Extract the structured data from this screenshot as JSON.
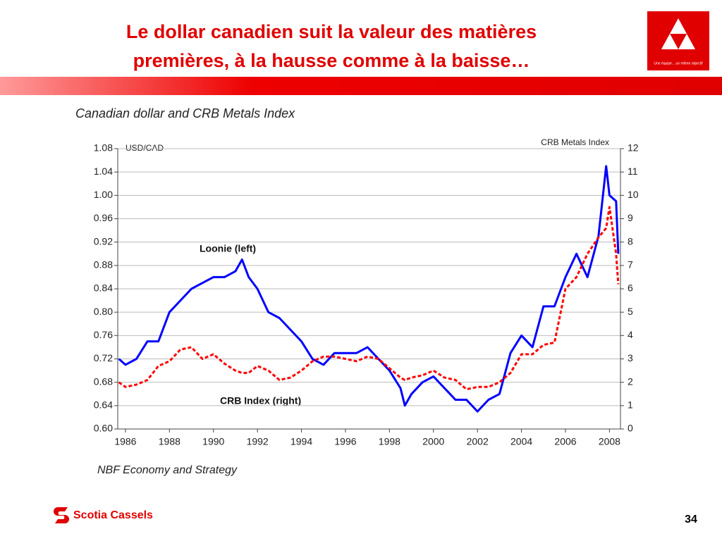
{
  "slide": {
    "title_line1": "Le dollar canadien suit la valeur des matières",
    "title_line2": "premières, à la hausse comme à la baisse…",
    "logo_tagline": "Une équipe... un même objectif",
    "footer_brand": "Scotia Cassels",
    "page_number": "34"
  },
  "chart_data": {
    "type": "line",
    "title": "Canadian dollar and CRB Metals Index",
    "y_axis_label": "USD/CAD",
    "y2_axis_label": "CRB Metals Index",
    "source": "NBF Economy and Strategy",
    "x": [
      1985.7,
      1986.0,
      1986.5,
      1987.0,
      1987.5,
      1988.0,
      1988.5,
      1989.0,
      1989.5,
      1990.0,
      1990.5,
      1991.0,
      1991.3,
      1991.6,
      1992.0,
      1992.5,
      1993.0,
      1993.5,
      1994.0,
      1994.5,
      1995.0,
      1995.5,
      1996.0,
      1996.5,
      1997.0,
      1997.5,
      1998.0,
      1998.5,
      1998.7,
      1999.0,
      1999.5,
      2000.0,
      2000.5,
      2001.0,
      2001.5,
      2002.0,
      2002.5,
      2003.0,
      2003.5,
      2004.0,
      2004.5,
      2005.0,
      2005.5,
      2006.0,
      2006.5,
      2007.0,
      2007.5,
      2007.85,
      2008.0,
      2008.3,
      2008.4
    ],
    "series": [
      {
        "name": "Loonie (left)",
        "color": "#0000ff",
        "axis": "y",
        "values": [
          0.72,
          0.71,
          0.72,
          0.75,
          0.75,
          0.8,
          0.82,
          0.84,
          0.85,
          0.86,
          0.86,
          0.87,
          0.89,
          0.86,
          0.84,
          0.8,
          0.79,
          0.77,
          0.75,
          0.72,
          0.71,
          0.73,
          0.73,
          0.73,
          0.74,
          0.72,
          0.7,
          0.67,
          0.64,
          0.66,
          0.68,
          0.69,
          0.67,
          0.65,
          0.65,
          0.63,
          0.65,
          0.66,
          0.73,
          0.76,
          0.74,
          0.81,
          0.81,
          0.86,
          0.9,
          0.86,
          0.93,
          1.05,
          1.0,
          0.99,
          0.9
        ]
      },
      {
        "name": "CRB Index (right)",
        "color": "#ff0000",
        "axis": "y2",
        "dashed": true,
        "values": [
          2.0,
          1.8,
          1.9,
          2.1,
          2.7,
          2.9,
          3.4,
          3.5,
          3.0,
          3.2,
          2.8,
          2.5,
          2.4,
          2.4,
          2.7,
          2.5,
          2.1,
          2.2,
          2.5,
          2.9,
          3.1,
          3.1,
          3.0,
          2.9,
          3.1,
          3.0,
          2.6,
          2.2,
          2.1,
          2.2,
          2.3,
          2.5,
          2.2,
          2.1,
          1.7,
          1.8,
          1.8,
          2.0,
          2.4,
          3.2,
          3.2,
          3.6,
          3.7,
          6.0,
          6.5,
          7.5,
          8.2,
          8.6,
          9.5,
          7.5,
          6.2
        ]
      }
    ],
    "xlim": [
      1985.65,
      2008.5
    ],
    "xticks": [
      1986,
      1988,
      1990,
      1992,
      1994,
      1996,
      1998,
      2000,
      2002,
      2004,
      2006,
      2008
    ],
    "ylim": [
      0.6,
      1.08
    ],
    "yticks": [
      {
        "value": 0.6,
        "label": "0.60"
      },
      0.64,
      0.68,
      0.72,
      0.76,
      {
        "value": 0.8,
        "label": "0.80"
      },
      0.84,
      0.88,
      0.92,
      0.96,
      {
        "value": 1.0,
        "label": "1.00"
      },
      1.04,
      1.08
    ],
    "y2lim": [
      0,
      12
    ],
    "y2ticks": [
      0,
      1,
      2,
      3,
      4,
      5,
      6,
      7,
      8,
      9,
      10,
      11,
      12
    ],
    "grid": true
  }
}
